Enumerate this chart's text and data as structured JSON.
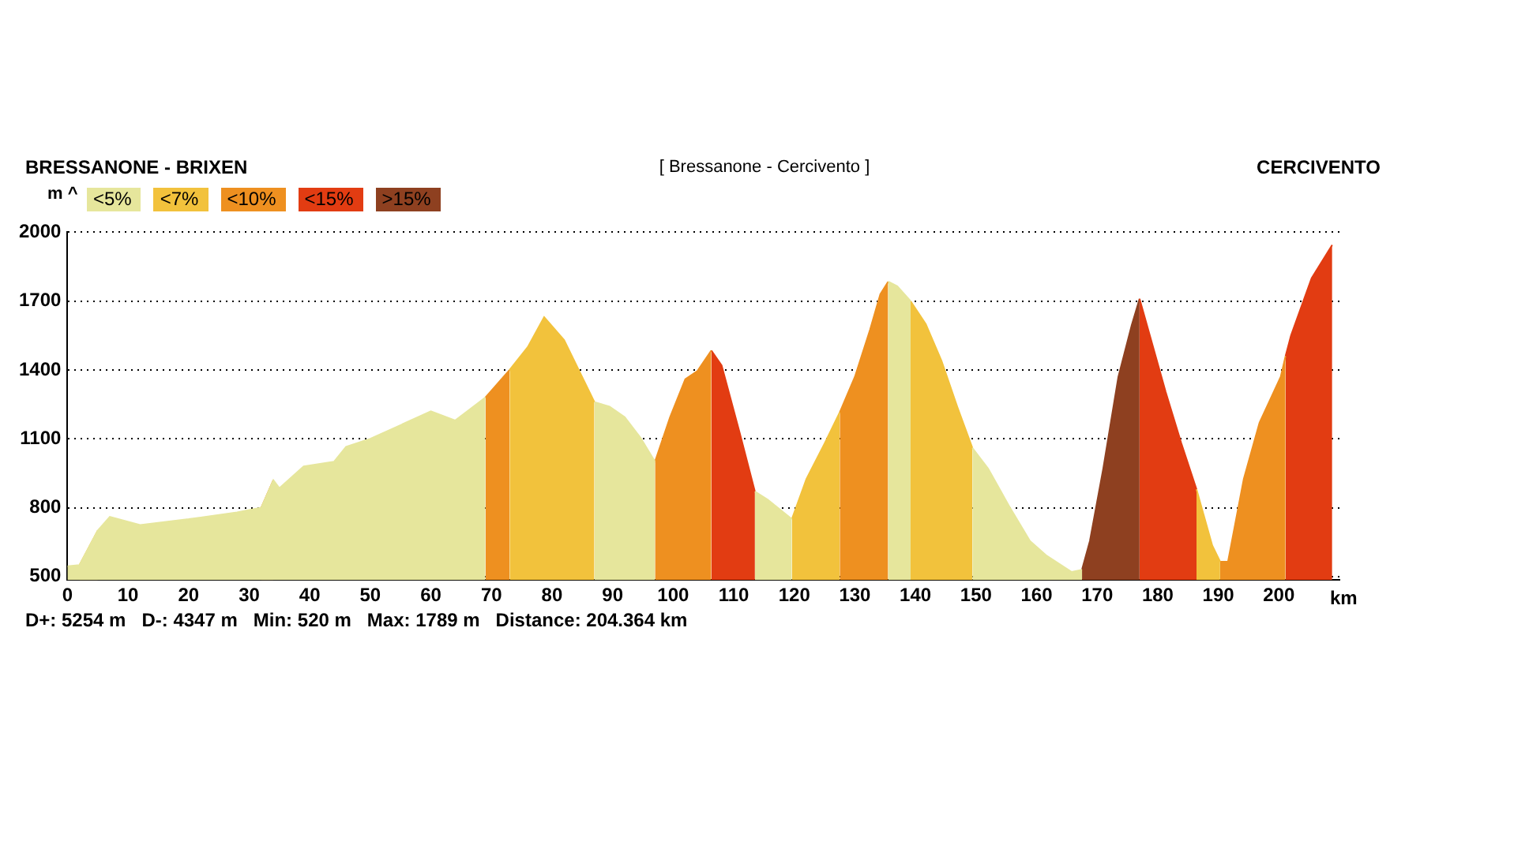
{
  "chart_data": {
    "type": "area",
    "title": "[ Bressanone - Cercivento ]",
    "annotations": [
      "BRESSANONE - BRIXEN",
      "CERCIVENTO",
      "D+: 5254 m   D-: 4347 m   Min: 520 m   Max: 1789 m   Distance: 204.364 km"
    ],
    "ylabel": "m ^",
    "xlabel": "km",
    "x": [
      0,
      2,
      5,
      7,
      12,
      20,
      28,
      32,
      34,
      35,
      39,
      44,
      46,
      50,
      55,
      60,
      64,
      69,
      73,
      76,
      78.7,
      82,
      87,
      89.5,
      92,
      94.6,
      97,
      99.5,
      102,
      104,
      106.3,
      108,
      111,
      113.5,
      115.6,
      119.6,
      122,
      125,
      127.5,
      130,
      132.5,
      134.2,
      135.5,
      137,
      139.2,
      141.7,
      144.3,
      146.9,
      149.4,
      152,
      155.4,
      158.9,
      161.7,
      165.8,
      167.5,
      168.8,
      171,
      173.5,
      175.7,
      177,
      178.7,
      181.3,
      183.9,
      186.4,
      189,
      190.3,
      191.6,
      194.2,
      196.8,
      200.3,
      201.1,
      202,
      205.4,
      208.8
    ],
    "series": [
      {
        "name": "<5%",
        "color": "#e6e69c",
        "values": [
          545,
          550,
          700,
          760,
          725,
          750,
          780,
          800,
          920,
          885,
          980,
          1000,
          1065,
          1100,
          1160,
          1220,
          1180,
          1280,
          null,
          null,
          null,
          null,
          1260,
          1240,
          1195,
          1105,
          1000,
          null,
          null,
          null,
          null,
          null,
          null,
          870,
          835,
          750,
          null,
          null,
          null,
          null,
          null,
          null,
          1785,
          1765,
          1700,
          null,
          null,
          null,
          1060,
          970,
          810,
          655,
          590,
          520,
          530,
          null,
          null,
          null,
          null,
          null,
          null,
          null,
          null,
          null,
          null,
          null,
          null,
          null,
          null,
          null,
          null,
          null,
          null,
          null
        ]
      },
      {
        "name": "<7%",
        "color": "#f2c23c",
        "values": [
          null,
          550,
          700,
          null,
          null,
          null,
          null,
          null,
          null,
          null,
          null,
          null,
          null,
          null,
          null,
          null,
          null,
          null,
          1400,
          1500,
          1630,
          1530,
          1260,
          null,
          null,
          null,
          null,
          null,
          null,
          null,
          null,
          null,
          null,
          null,
          null,
          750,
          925,
          1080,
          1215,
          null,
          null,
          null,
          null,
          null,
          1700,
          1600,
          1440,
          1240,
          1060,
          null,
          null,
          null,
          null,
          null,
          null,
          null,
          null,
          null,
          null,
          null,
          null,
          null,
          null,
          880,
          635,
          565,
          null,
          null,
          null,
          null,
          null,
          null,
          null,
          null
        ]
      },
      {
        "name": "<10%",
        "color": "#ee9020",
        "values": [
          null,
          null,
          null,
          null,
          null,
          null,
          null,
          800,
          920,
          null,
          null,
          null,
          null,
          null,
          null,
          null,
          null,
          1280,
          1400,
          null,
          null,
          null,
          null,
          null,
          null,
          null,
          1000,
          1195,
          1360,
          1395,
          1485,
          null,
          null,
          null,
          null,
          null,
          null,
          null,
          1215,
          1370,
          1575,
          1730,
          1785,
          null,
          null,
          null,
          null,
          null,
          null,
          null,
          null,
          null,
          null,
          null,
          null,
          null,
          null,
          null,
          null,
          null,
          null,
          null,
          null,
          null,
          null,
          565,
          565,
          925,
          1170,
          1370,
          1460,
          null,
          null,
          null
        ]
      },
      {
        "name": "<15%",
        "color": "#e23c12",
        "values": [
          null,
          null,
          null,
          null,
          null,
          null,
          null,
          null,
          null,
          null,
          null,
          null,
          null,
          null,
          null,
          null,
          null,
          null,
          null,
          null,
          null,
          null,
          null,
          null,
          null,
          null,
          null,
          null,
          null,
          null,
          1485,
          1420,
          1125,
          870,
          null,
          null,
          null,
          null,
          null,
          null,
          null,
          null,
          null,
          null,
          null,
          null,
          null,
          null,
          null,
          null,
          null,
          null,
          null,
          null,
          null,
          null,
          null,
          null,
          null,
          1710,
          1550,
          1305,
          1080,
          880,
          null,
          null,
          null,
          null,
          null,
          null,
          1460,
          1550,
          1800,
          1945
        ]
      },
      {
        "name": ">15%",
        "color": "#8e4020",
        "values": [
          null,
          null,
          null,
          null,
          null,
          null,
          null,
          null,
          null,
          null,
          null,
          null,
          null,
          null,
          null,
          null,
          null,
          null,
          null,
          null,
          null,
          null,
          null,
          null,
          null,
          null,
          null,
          null,
          null,
          null,
          null,
          null,
          null,
          null,
          null,
          null,
          null,
          null,
          null,
          null,
          null,
          null,
          null,
          null,
          null,
          null,
          null,
          null,
          null,
          null,
          null,
          null,
          null,
          null,
          530,
          655,
          970,
          1370,
          1595,
          1710,
          null,
          null,
          null,
          null,
          null,
          null,
          null,
          null,
          null,
          null,
          null,
          null,
          null,
          null
        ]
      }
    ],
    "xlim": [
      0,
      210
    ],
    "xticks": [
      0,
      10,
      20,
      30,
      40,
      50,
      60,
      70,
      80,
      90,
      100,
      110,
      120,
      130,
      140,
      150,
      160,
      170,
      180,
      190,
      200
    ],
    "ylim": [
      485,
      2000
    ],
    "yticks": [
      500,
      800,
      1100,
      1400,
      1700,
      2000
    ],
    "grid": "y",
    "legend": "top left",
    "marker": "none"
  }
}
